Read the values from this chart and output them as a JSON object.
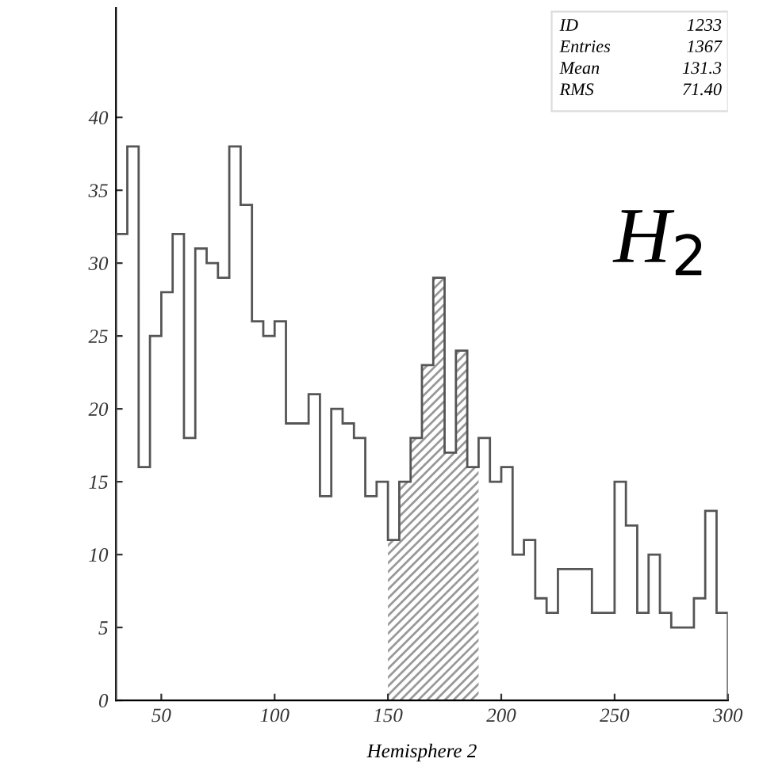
{
  "chart_data": {
    "type": "histogram",
    "xlabel": "Hemisphere 2",
    "bins": [
      30,
      35,
      40,
      45,
      50,
      55,
      60,
      65,
      70,
      75,
      80,
      85,
      90,
      95,
      100,
      105,
      110,
      115,
      120,
      125,
      130,
      135,
      140,
      145,
      150,
      155,
      160,
      165,
      170,
      175,
      180,
      185,
      190,
      195,
      200,
      205,
      210,
      215,
      220,
      225,
      230,
      235,
      240,
      245,
      250,
      255,
      260,
      265,
      270,
      275,
      280,
      285,
      290,
      295,
      300
    ],
    "values": [
      32,
      38,
      16,
      25,
      28,
      32,
      18,
      31,
      30,
      29,
      38,
      34,
      26,
      25,
      26,
      19,
      19,
      21,
      14,
      20,
      19,
      18,
      14,
      15,
      11,
      15,
      18,
      23,
      29,
      17,
      24,
      16,
      18,
      15,
      16,
      10,
      11,
      7,
      6,
      9,
      9,
      9,
      6,
      6,
      15,
      12,
      6,
      10,
      6,
      5,
      5,
      7,
      13,
      6
    ],
    "color": "#555555",
    "xlim": [
      30,
      300
    ],
    "xticks": [
      50,
      100,
      150,
      200,
      250,
      300
    ],
    "ylim": [
      0,
      47.5
    ],
    "yticks": [
      0,
      5,
      10,
      15,
      20,
      25,
      30,
      35,
      40
    ],
    "bands": [
      {
        "axis": "x",
        "from": 150,
        "to": 190,
        "color": "#999999"
      }
    ],
    "annotations": [
      "ID",
      "1233",
      "Entries",
      "1367",
      "Mean",
      "131.3",
      "RMS",
      "71.40",
      "H$_{2}$"
    ],
    "grid": false,
    "legend": false
  }
}
